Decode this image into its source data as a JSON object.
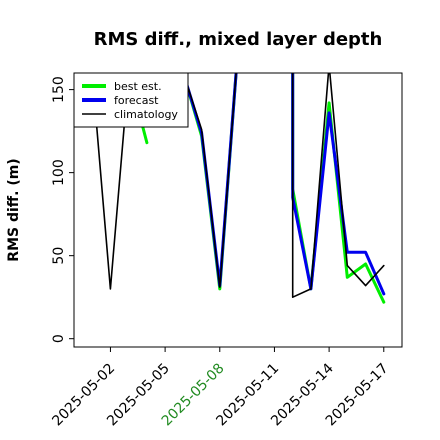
{
  "chart_data": {
    "type": "line",
    "title": "RMS diff., mixed layer depth",
    "xlabel": "",
    "ylabel": "RMS diff. (m)",
    "xlim": [
      "2025-04-30",
      "2025-05-18"
    ],
    "ylim": [
      -5,
      160
    ],
    "yticks": [
      0,
      50,
      100,
      150
    ],
    "xticks": [
      {
        "label": "2025-05-02",
        "date": "2025-05-02",
        "color": "#000000"
      },
      {
        "label": "2025-05-05",
        "date": "2025-05-05",
        "color": "#000000"
      },
      {
        "label": "2025-05-08",
        "date": "2025-05-08",
        "color": "#228B22"
      },
      {
        "label": "2025-05-11",
        "date": "2025-05-11",
        "color": "#000000"
      },
      {
        "label": "2025-05-14",
        "date": "2025-05-14",
        "color": "#000000"
      },
      {
        "label": "2025-05-17",
        "date": "2025-05-17",
        "color": "#000000"
      }
    ],
    "legend_position": "top-left",
    "grid": false,
    "series": [
      {
        "name": "best est.",
        "color": "#00ee00",
        "width": 3,
        "segments": [
          [
            [
              "2025-05-03",
              160
            ],
            [
              "2025-05-04",
              118
            ]
          ],
          [
            [
              "2025-05-06",
              160
            ],
            [
              "2025-05-07",
              122
            ],
            [
              "2025-05-08",
              30
            ],
            [
              "2025-05-09",
              175
            ]
          ],
          [
            [
              "2025-05-12",
              160
            ],
            [
              "2025-05-12",
              90
            ],
            [
              "2025-05-13",
              30
            ],
            [
              "2025-05-14",
              142
            ],
            [
              "2025-05-15",
              37
            ],
            [
              "2025-05-16",
              45
            ],
            [
              "2025-05-17",
              22
            ]
          ]
        ]
      },
      {
        "name": "forecast",
        "color": "#0000ee",
        "width": 3,
        "segments": [
          [
            [
              "2025-05-06",
              160
            ],
            [
              "2025-05-07",
              124
            ],
            [
              "2025-05-08",
              32
            ],
            [
              "2025-05-09",
              175
            ]
          ],
          [
            [
              "2025-05-12",
              160
            ],
            [
              "2025-05-12",
              85
            ],
            [
              "2025-05-13",
              30
            ],
            [
              "2025-05-14",
              136
            ],
            [
              "2025-05-15",
              52
            ],
            [
              "2025-05-16",
              52
            ],
            [
              "2025-05-17",
              27
            ]
          ]
        ]
      },
      {
        "name": "climatology",
        "color": "#000000",
        "width": 1.6,
        "segments": [
          [
            [
              "2025-05-01",
              160
            ],
            [
              "2025-05-02",
              30
            ],
            [
              "2025-05-03",
              160
            ]
          ],
          [
            [
              "2025-05-06",
              160
            ],
            [
              "2025-05-07",
              126
            ],
            [
              "2025-05-08",
              31
            ],
            [
              "2025-05-09",
              175
            ]
          ],
          [
            [
              "2025-05-12",
              160
            ],
            [
              "2025-05-12",
              25
            ],
            [
              "2025-05-13",
              30
            ],
            [
              "2025-05-14",
              165
            ],
            [
              "2025-05-15",
              44
            ],
            [
              "2025-05-16",
              32
            ],
            [
              "2025-05-17",
              44
            ]
          ]
        ]
      }
    ]
  }
}
